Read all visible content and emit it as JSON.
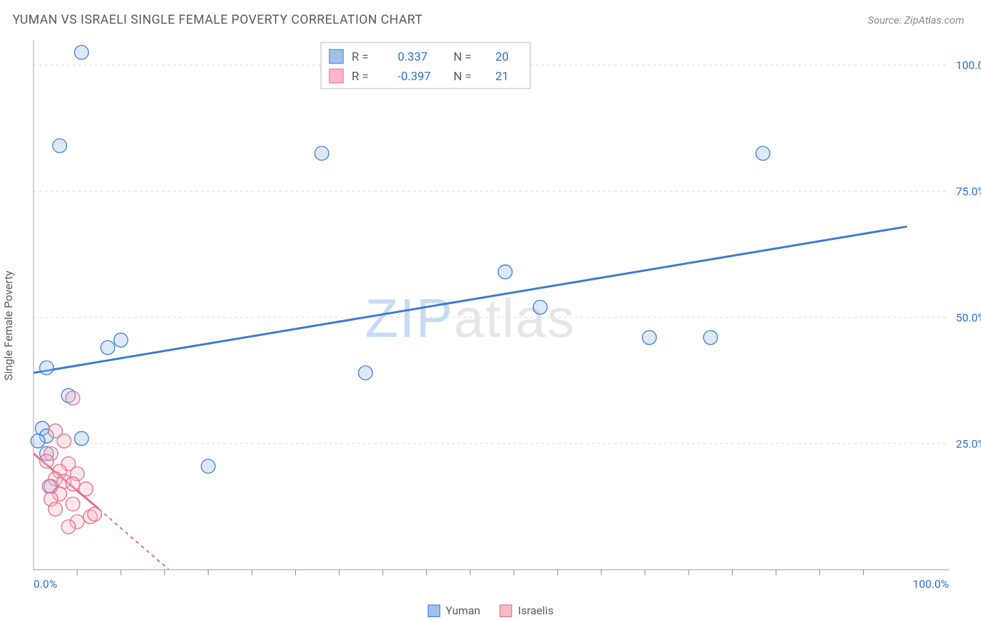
{
  "title": "YUMAN VS ISRAELI SINGLE FEMALE POVERTY CORRELATION CHART",
  "source": "Source: ZipAtlas.com",
  "ylabel": "Single Female Poverty",
  "watermark": "ZIPatlas",
  "chart": {
    "type": "scatter",
    "background_color": "#ffffff",
    "grid_color": "#d9d9d9",
    "axis_color": "#b0b0b0",
    "tick_color": "#888888",
    "xlim": [
      0,
      100
    ],
    "ylim": [
      0,
      105
    ],
    "ytick_step": 25,
    "xtick_step": 25,
    "ytick_labels": [
      "25.0%",
      "50.0%",
      "75.0%",
      "100.0%"
    ],
    "ytick_values": [
      25,
      50,
      75,
      100
    ],
    "xtick_labels": [
      "0.0%",
      "100.0%"
    ],
    "xtick_values": [
      0,
      100
    ],
    "x_minor_positions": [
      5,
      10,
      15,
      20,
      25,
      30,
      35,
      40,
      45,
      50,
      55,
      60,
      65,
      70,
      75,
      80,
      85,
      90,
      95
    ],
    "tick_label_color": "#2f6fd0",
    "point_radius": 10,
    "series": [
      {
        "name": "Yuman",
        "fill": "#9fc1ec",
        "stroke": "#3a7bd5",
        "regression": {
          "x1": 0,
          "y1": 39,
          "x2": 100,
          "y2": 68,
          "solid": true
        },
        "points": [
          [
            5.5,
            102.5
          ],
          [
            3,
            84
          ],
          [
            33,
            82.5
          ],
          [
            83.5,
            82.5
          ],
          [
            54,
            59
          ],
          [
            58,
            52
          ],
          [
            70.5,
            46
          ],
          [
            77.5,
            46
          ],
          [
            10,
            45.5
          ],
          [
            8.5,
            44
          ],
          [
            1.5,
            40
          ],
          [
            38,
            39
          ],
          [
            4,
            34.5
          ],
          [
            1,
            28
          ],
          [
            1.5,
            26.5
          ],
          [
            5.5,
            26
          ],
          [
            20,
            20.5
          ],
          [
            2,
            16.5
          ],
          [
            0.5,
            25.5
          ],
          [
            1.5,
            23
          ]
        ]
      },
      {
        "name": "Israelis",
        "fill": "#f7b9c6",
        "stroke": "#e86a87",
        "regression": {
          "x1": 0,
          "y1": 23,
          "x2": 15.5,
          "y2": 0,
          "solid_to_x": 7.5,
          "solid_to_y": 12
        },
        "points": [
          [
            4.5,
            34
          ],
          [
            2.5,
            27.5
          ],
          [
            3.5,
            25.5
          ],
          [
            2,
            23
          ],
          [
            1.5,
            21.5
          ],
          [
            4,
            21
          ],
          [
            3,
            19.5
          ],
          [
            5,
            19
          ],
          [
            2.5,
            18
          ],
          [
            3.5,
            17.5
          ],
          [
            4.5,
            17
          ],
          [
            1.8,
            16.5
          ],
          [
            6,
            16
          ],
          [
            3,
            15
          ],
          [
            2,
            14
          ],
          [
            4.5,
            13
          ],
          [
            6.5,
            10.5
          ],
          [
            5,
            9.5
          ],
          [
            4,
            8.5
          ],
          [
            7,
            11
          ],
          [
            2.5,
            12
          ]
        ]
      }
    ]
  },
  "legend_top": {
    "rows": [
      {
        "swatch_fill": "#9fc1ec",
        "swatch_stroke": "#3a7bd5",
        "r_label": "R =",
        "r_val": "0.337",
        "n_label": "N =",
        "n_val": "20"
      },
      {
        "swatch_fill": "#f7b9c6",
        "swatch_stroke": "#e86a87",
        "r_label": "R =",
        "r_val": "-0.397",
        "n_label": "N =",
        "n_val": "21"
      }
    ],
    "val_color": "#2f6fd0"
  },
  "legend_bottom": [
    {
      "label": "Yuman",
      "fill": "#9fc1ec",
      "stroke": "#3a7bd5"
    },
    {
      "label": "Israelis",
      "fill": "#f7b9c6",
      "stroke": "#e86a87"
    }
  ]
}
